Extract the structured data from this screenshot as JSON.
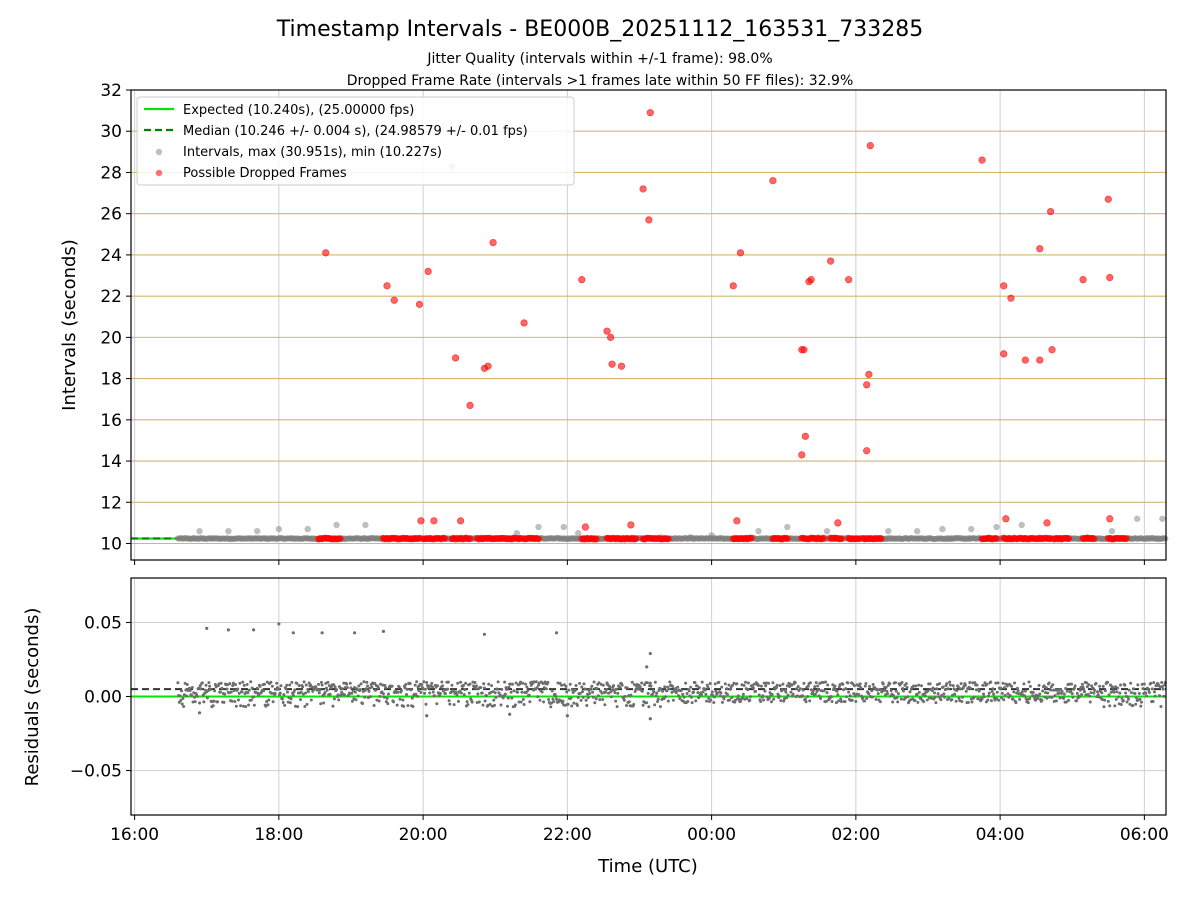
{
  "chart_data": {
    "type": "scatter",
    "title": "Timestamp Intervals - BE000B_20251112_163531_733285",
    "subtitle_1": "Jitter Quality (intervals within +/-1 frame): 98.0%",
    "subtitle_2": "Dropped Frame Rate (intervals >1 frames late within 50 FF files): 32.9%",
    "xlabel": "Time (UTC)",
    "x_ticks": [
      "16:00",
      "18:00",
      "20:00",
      "22:00",
      "00:00",
      "02:00",
      "04:00",
      "06:00"
    ],
    "top": {
      "ylabel": "Intervals (seconds)",
      "ylim": [
        9.2,
        32
      ],
      "yticks": [
        10,
        12,
        14,
        16,
        18,
        20,
        22,
        24,
        26,
        28,
        30,
        32
      ],
      "expected": 10.24,
      "median": 10.246,
      "legend": {
        "expected": "Expected (10.240s), (25.00000 fps)",
        "median": "Median (10.246 +/- 0.004 s), (24.98579 +/- 0.01 fps)",
        "intervals": "Intervals, max (30.951s), min (10.227s)",
        "dropped": "Possible Dropped Frames"
      },
      "intervals_sample": [
        [
          16.9,
          10.6
        ],
        [
          17.3,
          10.6
        ],
        [
          17.7,
          10.6
        ],
        [
          18.0,
          10.7
        ],
        [
          18.4,
          10.7
        ],
        [
          18.8,
          10.9
        ],
        [
          19.2,
          10.9
        ],
        [
          20.4,
          28.3
        ],
        [
          21.3,
          10.5
        ],
        [
          21.6,
          10.8
        ],
        [
          21.95,
          10.8
        ],
        [
          22.15,
          10.5
        ],
        [
          23.3,
          10.3
        ],
        [
          23.7,
          10.3
        ],
        [
          24.0,
          10.4
        ],
        [
          24.65,
          10.6
        ],
        [
          25.05,
          10.8
        ],
        [
          25.6,
          10.6
        ],
        [
          26.45,
          10.6
        ],
        [
          26.85,
          10.6
        ],
        [
          27.2,
          10.7
        ],
        [
          27.6,
          10.7
        ],
        [
          27.95,
          10.8
        ],
        [
          28.3,
          10.9
        ],
        [
          29.2,
          10.3
        ],
        [
          29.55,
          10.6
        ],
        [
          29.9,
          11.2
        ],
        [
          30.25,
          11.2
        ]
      ],
      "dropped_frames": [
        [
          18.65,
          24.1
        ],
        [
          19.5,
          22.5
        ],
        [
          19.6,
          21.8
        ],
        [
          19.95,
          21.6
        ],
        [
          19.97,
          11.1
        ],
        [
          20.07,
          23.2
        ],
        [
          20.15,
          11.1
        ],
        [
          20.45,
          19.0
        ],
        [
          20.52,
          11.1
        ],
        [
          20.65,
          16.7
        ],
        [
          20.85,
          18.5
        ],
        [
          20.9,
          18.6
        ],
        [
          20.97,
          24.6
        ],
        [
          21.4,
          20.7
        ],
        [
          22.2,
          22.8
        ],
        [
          22.25,
          10.8
        ],
        [
          22.55,
          20.3
        ],
        [
          22.6,
          20.0
        ],
        [
          22.62,
          18.7
        ],
        [
          22.75,
          18.6
        ],
        [
          22.88,
          10.9
        ],
        [
          23.05,
          27.2
        ],
        [
          23.15,
          30.9
        ],
        [
          23.13,
          25.7
        ],
        [
          24.3,
          22.5
        ],
        [
          24.35,
          11.1
        ],
        [
          24.4,
          24.1
        ],
        [
          24.85,
          27.6
        ],
        [
          25.25,
          19.4
        ],
        [
          25.28,
          19.4
        ],
        [
          25.3,
          15.2
        ],
        [
          25.25,
          14.3
        ],
        [
          25.35,
          22.7
        ],
        [
          25.38,
          22.8
        ],
        [
          25.65,
          23.7
        ],
        [
          25.75,
          11.0
        ],
        [
          25.9,
          22.8
        ],
        [
          26.15,
          17.7
        ],
        [
          26.18,
          18.2
        ],
        [
          26.15,
          14.5
        ],
        [
          26.2,
          29.3
        ],
        [
          27.75,
          28.6
        ],
        [
          28.05,
          22.5
        ],
        [
          28.05,
          19.2
        ],
        [
          28.08,
          11.2
        ],
        [
          28.15,
          21.9
        ],
        [
          28.35,
          18.9
        ],
        [
          28.55,
          24.3
        ],
        [
          28.55,
          18.9
        ],
        [
          28.65,
          11.0
        ],
        [
          28.7,
          26.1
        ],
        [
          28.72,
          19.4
        ],
        [
          29.15,
          22.8
        ],
        [
          29.5,
          26.7
        ],
        [
          29.52,
          22.9
        ],
        [
          29.52,
          11.2
        ]
      ],
      "dropped_dense_ranges": [
        [
          18.55,
          18.85
        ],
        [
          19.45,
          19.95
        ],
        [
          20.0,
          20.3
        ],
        [
          20.4,
          20.65
        ],
        [
          20.75,
          21.35
        ],
        [
          21.4,
          21.6
        ],
        [
          22.2,
          22.4
        ],
        [
          22.55,
          22.95
        ],
        [
          23.05,
          23.4
        ],
        [
          24.3,
          24.55
        ],
        [
          24.85,
          25.05
        ],
        [
          25.25,
          25.55
        ],
        [
          25.65,
          25.8
        ],
        [
          25.9,
          26.05
        ],
        [
          26.1,
          26.35
        ],
        [
          27.75,
          27.95
        ],
        [
          28.05,
          28.7
        ],
        [
          28.75,
          28.95
        ],
        [
          29.15,
          29.3
        ],
        [
          29.5,
          29.75
        ]
      ]
    },
    "bottom": {
      "ylabel": "Residuals (seconds)",
      "ylim": [
        -0.08,
        0.08
      ],
      "yticks": [
        0.05,
        0.0,
        -0.05
      ],
      "ytick_labels": [
        "0.05",
        "0.00",
        "−0.05"
      ],
      "expected": 0.0,
      "median": 0.005,
      "outliers": [
        [
          16.9,
          -0.011
        ],
        [
          17.0,
          0.046
        ],
        [
          17.3,
          0.045
        ],
        [
          17.65,
          0.045
        ],
        [
          18.0,
          0.049
        ],
        [
          18.2,
          0.043
        ],
        [
          18.6,
          0.043
        ],
        [
          19.05,
          0.043
        ],
        [
          19.45,
          0.044
        ],
        [
          20.85,
          0.042
        ],
        [
          21.85,
          0.043
        ],
        [
          22.55,
          0.009
        ],
        [
          23.15,
          0.029
        ],
        [
          23.1,
          0.02
        ],
        [
          20.05,
          -0.013
        ],
        [
          21.2,
          -0.012
        ],
        [
          22.0,
          -0.013
        ],
        [
          23.15,
          -0.015
        ]
      ]
    },
    "xlim": [
      15.95,
      30.3
    ],
    "colors": {
      "expected": "#00e600",
      "median": "#007f00",
      "intervals": "#808080",
      "dropped": "#ff0000",
      "hline": "#d2b770",
      "grid": "#cfcfcf"
    }
  }
}
